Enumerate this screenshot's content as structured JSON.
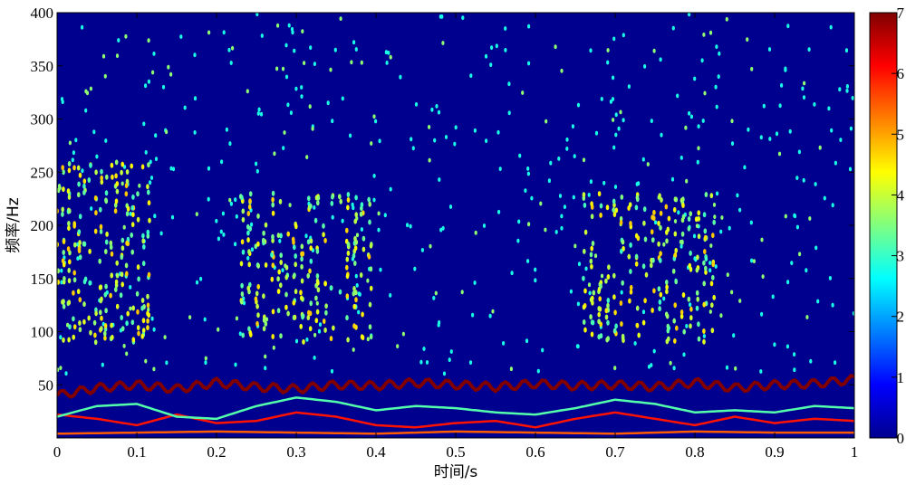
{
  "chart_data": {
    "type": "heatmap",
    "title": "",
    "xlabel": "时间/s",
    "ylabel": "频率/Hz",
    "xlim": [
      0,
      1
    ],
    "ylim": [
      0,
      400
    ],
    "x_ticks": [
      "0",
      "0.1",
      "0.2",
      "0.3",
      "0.4",
      "0.5",
      "0.6",
      "0.7",
      "0.8",
      "0.9",
      "1"
    ],
    "x_tick_values": [
      0,
      0.1,
      0.2,
      0.3,
      0.4,
      0.5,
      0.6,
      0.7,
      0.8,
      0.9,
      1
    ],
    "y_ticks": [
      "50",
      "100",
      "150",
      "200",
      "250",
      "300",
      "350",
      "400"
    ],
    "y_tick_values": [
      50,
      100,
      150,
      200,
      250,
      300,
      350,
      400
    ],
    "colorbar": {
      "range": [
        0,
        7
      ],
      "ticks": [
        "0",
        "1",
        "2",
        "3",
        "4",
        "5",
        "6",
        "7"
      ],
      "tick_values": [
        0,
        1,
        2,
        3,
        4,
        5,
        6,
        7
      ],
      "colormap": "jet"
    },
    "grid": false,
    "background_color": "#00008f",
    "ridges": [
      {
        "level": 7,
        "description_freq_hz": 48,
        "points": [
          [
            0,
            40
          ],
          [
            0.05,
            47
          ],
          [
            0.1,
            50
          ],
          [
            0.15,
            46
          ],
          [
            0.2,
            52
          ],
          [
            0.25,
            48
          ],
          [
            0.3,
            46
          ],
          [
            0.35,
            50
          ],
          [
            0.4,
            49
          ],
          [
            0.45,
            52
          ],
          [
            0.5,
            50
          ],
          [
            0.55,
            48
          ],
          [
            0.6,
            51
          ],
          [
            0.65,
            49
          ],
          [
            0.7,
            50
          ],
          [
            0.75,
            48
          ],
          [
            0.8,
            52
          ],
          [
            0.85,
            47
          ],
          [
            0.9,
            50
          ],
          [
            0.95,
            51
          ],
          [
            1,
            55
          ]
        ]
      },
      {
        "level": 6,
        "points": [
          [
            0,
            22
          ],
          [
            0.05,
            18
          ],
          [
            0.1,
            12
          ],
          [
            0.15,
            22
          ],
          [
            0.2,
            14
          ],
          [
            0.25,
            16
          ],
          [
            0.3,
            24
          ],
          [
            0.35,
            20
          ],
          [
            0.4,
            12
          ],
          [
            0.45,
            10
          ],
          [
            0.5,
            14
          ],
          [
            0.55,
            16
          ],
          [
            0.6,
            10
          ],
          [
            0.65,
            18
          ],
          [
            0.7,
            24
          ],
          [
            0.75,
            18
          ],
          [
            0.8,
            12
          ],
          [
            0.85,
            20
          ],
          [
            0.9,
            14
          ],
          [
            0.95,
            18
          ],
          [
            1,
            16
          ]
        ]
      },
      {
        "level": 3.2,
        "points": [
          [
            0,
            20
          ],
          [
            0.05,
            30
          ],
          [
            0.1,
            32
          ],
          [
            0.15,
            20
          ],
          [
            0.2,
            18
          ],
          [
            0.25,
            30
          ],
          [
            0.3,
            38
          ],
          [
            0.35,
            34
          ],
          [
            0.4,
            26
          ],
          [
            0.45,
            30
          ],
          [
            0.5,
            28
          ],
          [
            0.55,
            24
          ],
          [
            0.6,
            22
          ],
          [
            0.65,
            28
          ],
          [
            0.7,
            36
          ],
          [
            0.75,
            32
          ],
          [
            0.8,
            24
          ],
          [
            0.85,
            26
          ],
          [
            0.9,
            24
          ],
          [
            0.95,
            30
          ],
          [
            1,
            28
          ]
        ]
      },
      {
        "level": 5.5,
        "points": [
          [
            0,
            4
          ],
          [
            0.1,
            5
          ],
          [
            0.2,
            6
          ],
          [
            0.3,
            5
          ],
          [
            0.4,
            4
          ],
          [
            0.5,
            6
          ],
          [
            0.6,
            5
          ],
          [
            0.7,
            4
          ],
          [
            0.8,
            6
          ],
          [
            0.9,
            5
          ],
          [
            1,
            5
          ]
        ]
      }
    ],
    "burst_regions": [
      {
        "x_start": 0.0,
        "x_end": 0.12,
        "y_low": 90,
        "y_high": 260
      },
      {
        "x_start": 0.23,
        "x_end": 0.4,
        "y_low": 90,
        "y_high": 230
      },
      {
        "x_start": 0.66,
        "x_end": 0.83,
        "y_low": 90,
        "y_high": 230
      }
    ]
  }
}
